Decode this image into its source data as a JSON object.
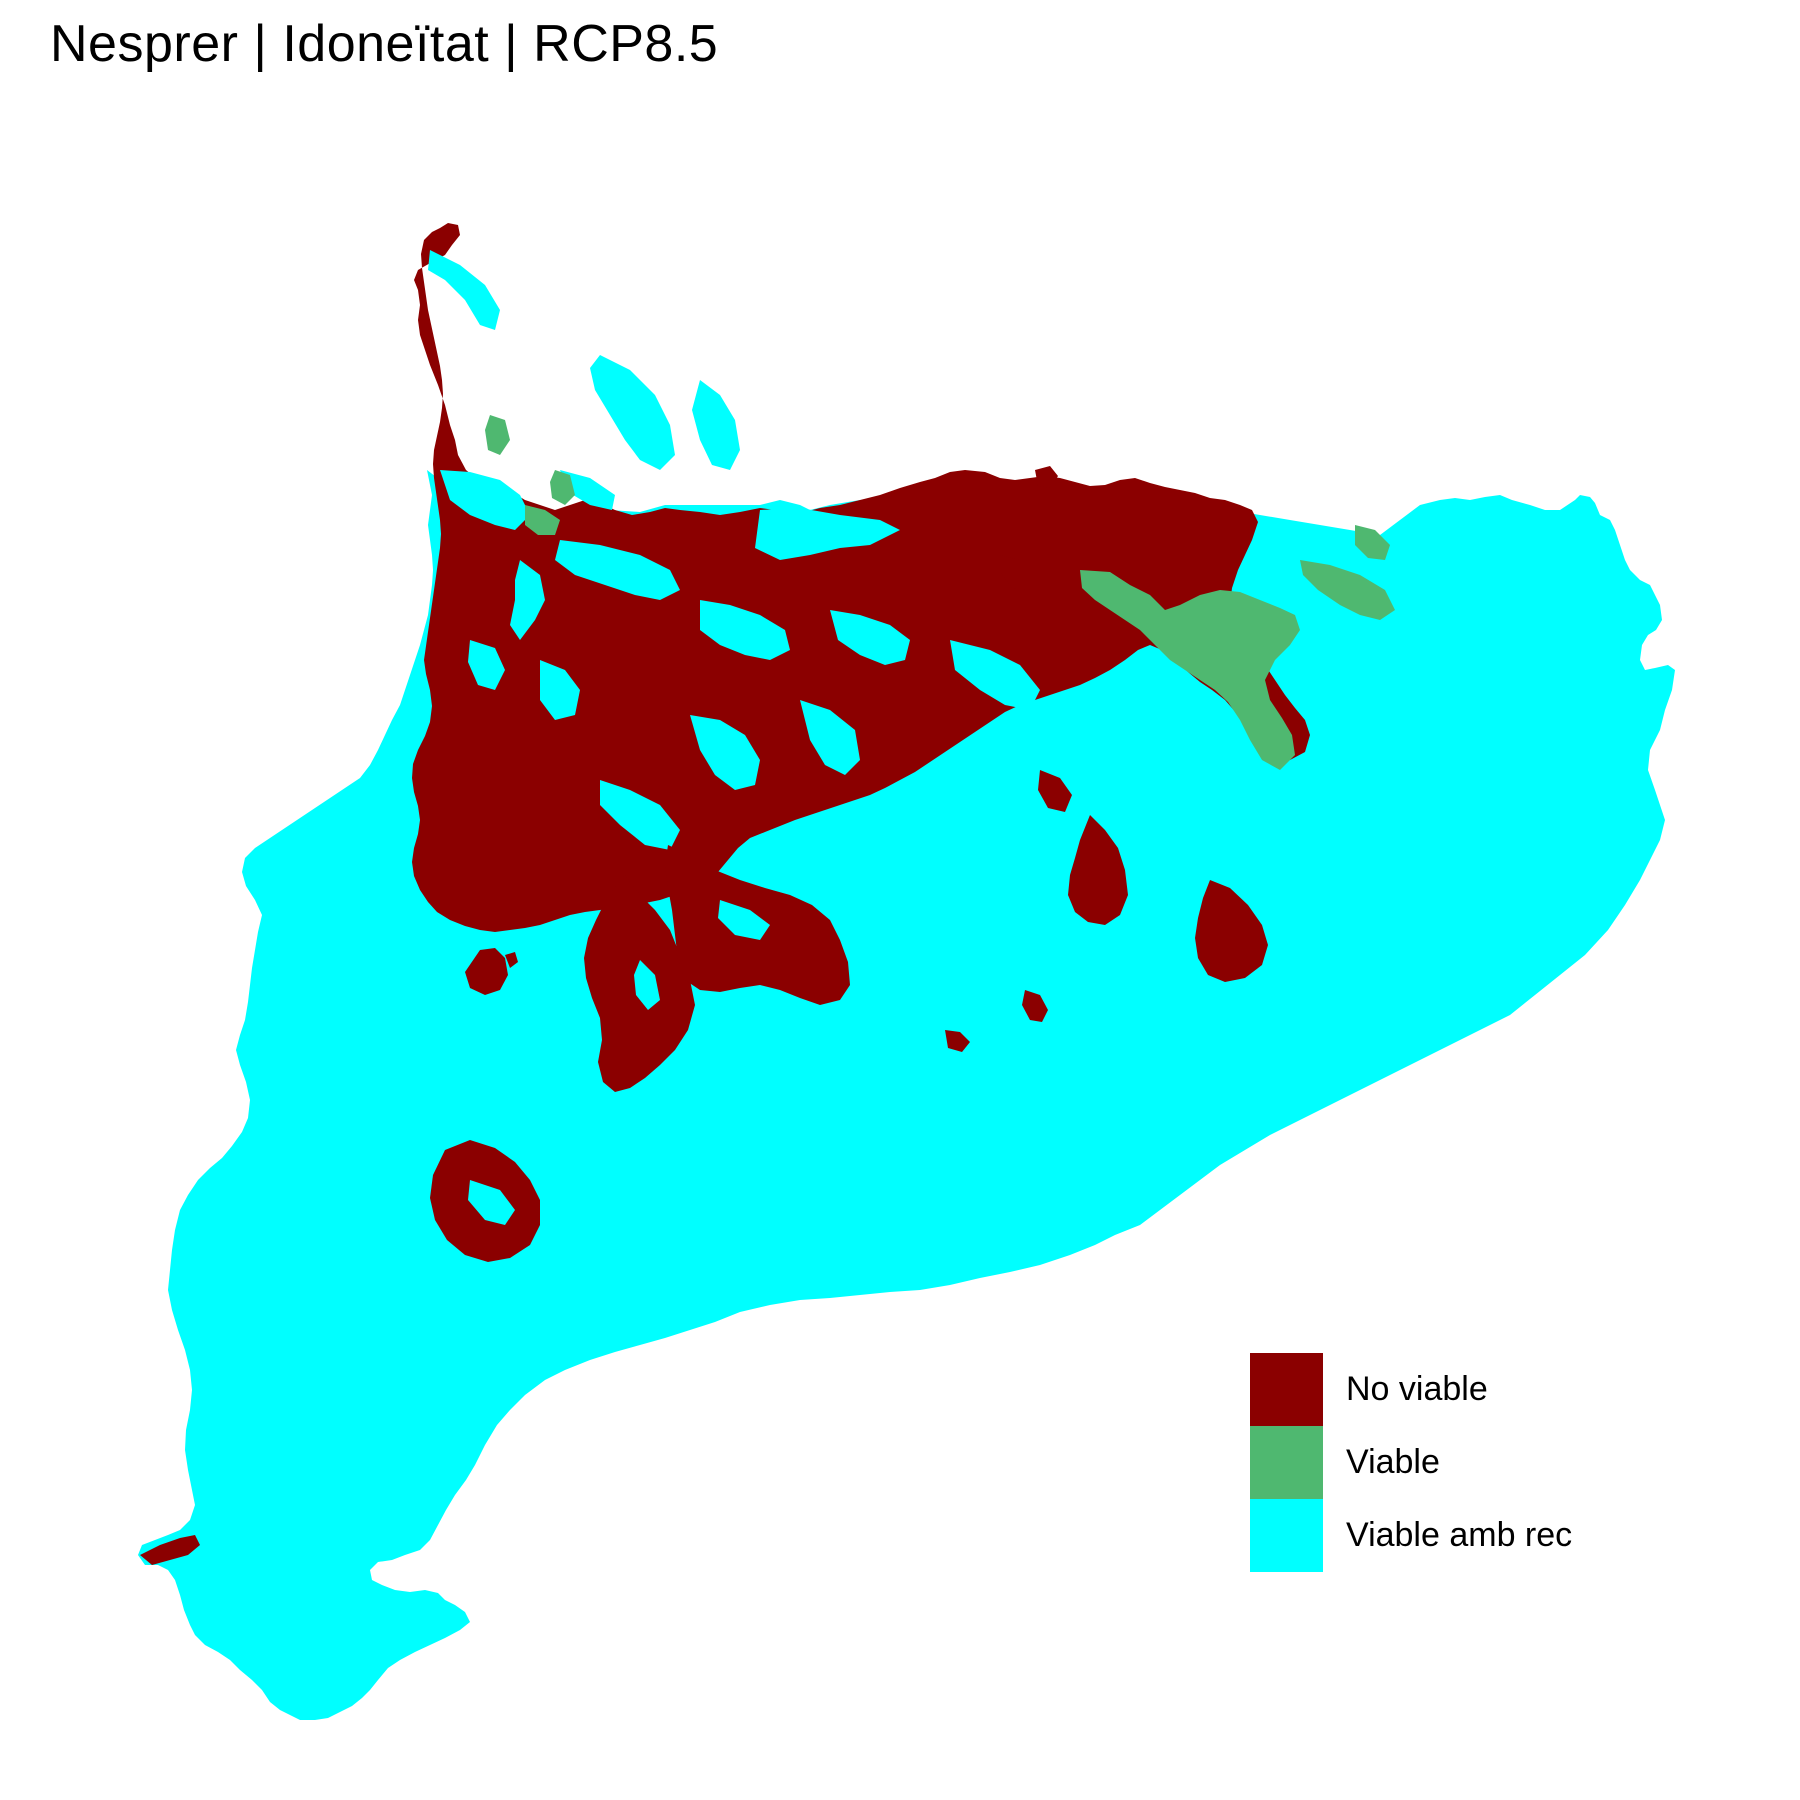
{
  "title": "Nesprer | Idoneïtat | RCP8.5",
  "colors": {
    "no_viable": "#8B0000",
    "viable": "#4FB870",
    "viable_amb_rec": "#00FFFF"
  },
  "legend": {
    "items": [
      {
        "key": "no_viable",
        "label": "No viable",
        "color": "#8B0000"
      },
      {
        "key": "viable",
        "label": "Viable",
        "color": "#4FB870"
      },
      {
        "key": "viable_amb_rec",
        "label": "Viable amb rec",
        "color": "#00FFFF"
      }
    ]
  }
}
